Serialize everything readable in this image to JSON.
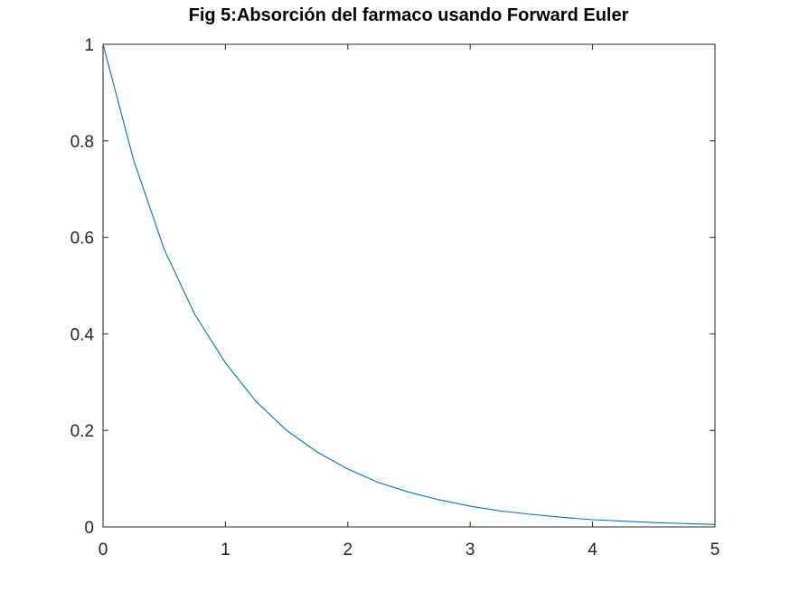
{
  "chart_data": {
    "type": "line",
    "title": "Fig 5:Absorción del farmaco usando Forward Euler",
    "xlabel": "",
    "ylabel": "",
    "xlim": [
      0,
      5
    ],
    "ylim": [
      0,
      1
    ],
    "x_ticks": [
      0,
      1,
      2,
      3,
      4,
      5
    ],
    "x_tick_labels": [
      "0",
      "1",
      "2",
      "3",
      "4",
      "5"
    ],
    "y_ticks": [
      0,
      0.2,
      0.4,
      0.6,
      0.8,
      1
    ],
    "y_tick_labels": [
      "0",
      "0.2",
      "0.4",
      "0.6",
      "0.8",
      "1"
    ],
    "grid": false,
    "box": true,
    "series": [
      {
        "color": "#0072bd",
        "x": [
          0,
          0.25,
          0.5,
          0.75,
          1,
          1.25,
          1.5,
          1.75,
          2,
          2.25,
          2.5,
          2.75,
          3,
          3.25,
          3.5,
          3.75,
          4,
          4.25,
          4.5,
          4.75,
          5
        ],
        "y": [
          1,
          0.76,
          0.575,
          0.44,
          0.34,
          0.26,
          0.2,
          0.155,
          0.12,
          0.092,
          0.072,
          0.056,
          0.043,
          0.033,
          0.026,
          0.02,
          0.015,
          0.012,
          0.009,
          0.007,
          0.005
        ]
      }
    ]
  }
}
